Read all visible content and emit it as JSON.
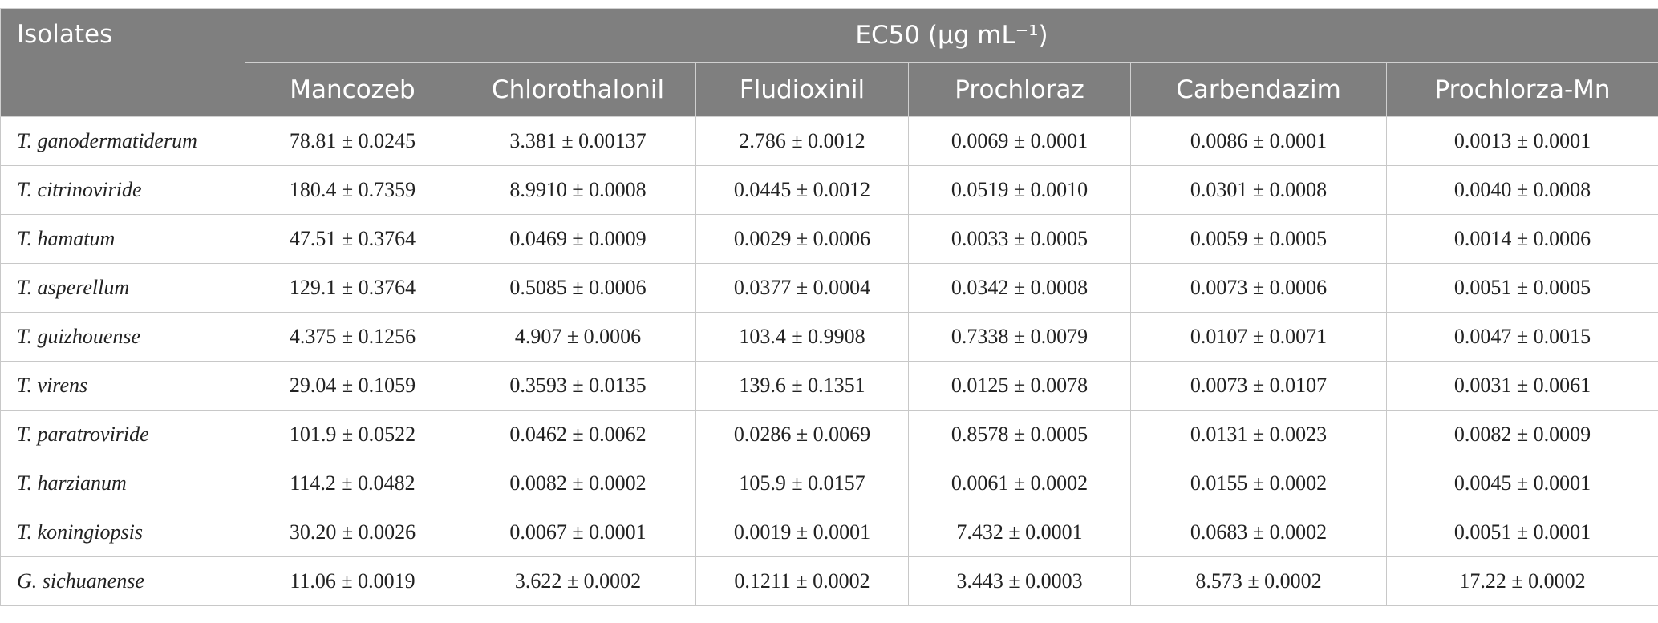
{
  "table": {
    "header": {
      "first": "Isolates",
      "group": "EC50 (μg mL⁻¹)",
      "columns": [
        "Mancozeb",
        "Chlorothalonil",
        "Fludioxinil",
        "Prochloraz",
        "Carbendazim",
        "Prochlorza-Mn"
      ]
    },
    "rows": [
      [
        "T. ganodermatiderum",
        "78.81 ± 0.0245",
        "3.381 ± 0.00137",
        "2.786 ± 0.0012",
        "0.0069 ± 0.0001",
        "0.0086 ± 0.0001",
        "0.0013 ± 0.0001"
      ],
      [
        "T. citrinoviride",
        "180.4 ± 0.7359",
        "8.9910 ± 0.0008",
        "0.0445 ± 0.0012",
        "0.0519 ± 0.0010",
        "0.0301 ± 0.0008",
        "0.0040 ± 0.0008"
      ],
      [
        "T. hamatum",
        "47.51 ± 0.3764",
        "0.0469 ± 0.0009",
        "0.0029 ± 0.0006",
        "0.0033 ± 0.0005",
        "0.0059 ± 0.0005",
        "0.0014 ± 0.0006"
      ],
      [
        "T. asperellum",
        "129.1 ± 0.3764",
        "0.5085 ± 0.0006",
        "0.0377 ± 0.0004",
        "0.0342 ± 0.0008",
        "0.0073 ± 0.0006",
        "0.0051 ± 0.0005"
      ],
      [
        "T. guizhouense",
        "4.375 ± 0.1256",
        "4.907 ± 0.0006",
        "103.4 ± 0.9908",
        "0.7338 ± 0.0079",
        "0.0107 ± 0.0071",
        "0.0047 ± 0.0015"
      ],
      [
        "T. virens",
        "29.04 ± 0.1059",
        "0.3593 ± 0.0135",
        "139.6 ± 0.1351",
        "0.0125 ± 0.0078",
        "0.0073 ± 0.0107",
        "0.0031 ± 0.0061"
      ],
      [
        "T. paratroviride",
        "101.9 ± 0.0522",
        "0.0462 ± 0.0062",
        "0.0286 ± 0.0069",
        "0.8578 ± 0.0005",
        "0.0131 ± 0.0023",
        "0.0082 ± 0.0009"
      ],
      [
        "T. harzianum",
        "114.2 ± 0.0482",
        "0.0082 ± 0.0002",
        "105.9 ± 0.0157",
        "0.0061 ± 0.0002",
        "0.0155 ± 0.0002",
        "0.0045 ± 0.0001"
      ],
      [
        "T. koningiopsis",
        "30.20 ± 0.0026",
        "0.0067 ± 0.0001",
        "0.0019 ± 0.0001",
        "7.432 ± 0.0001",
        "0.0683 ± 0.0002",
        "0.0051 ± 0.0001"
      ],
      [
        "G. sichuanense",
        "11.06 ± 0.0019",
        "3.622 ± 0.0002",
        "0.1211 ± 0.0002",
        "3.443 ± 0.0003",
        "8.573 ± 0.0002",
        "17.22 ± 0.0002"
      ]
    ]
  }
}
